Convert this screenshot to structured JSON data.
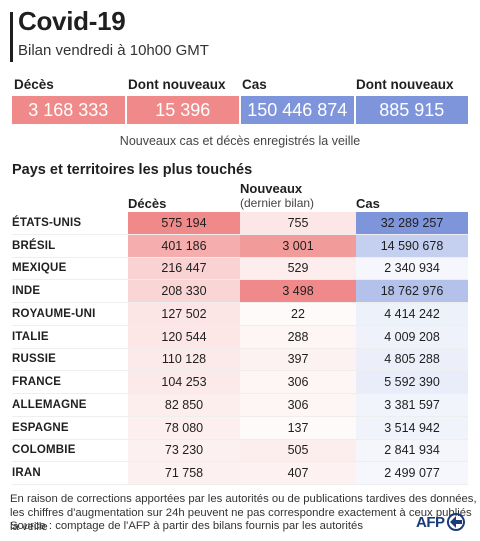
{
  "header": {
    "title": "Covid-19",
    "subtitle": "Bilan vendredi à 10h00 GMT"
  },
  "summary": {
    "items": [
      {
        "label": "Décès",
        "value": "3 168 333",
        "color": "#f08a8a"
      },
      {
        "label": "Dont nouveaux",
        "value": "15 396",
        "color": "#f08a8a"
      },
      {
        "label": "Cas",
        "value": "150 446 874",
        "color": "#7e95db"
      },
      {
        "label": "Dont nouveaux",
        "value": "885 915",
        "color": "#7e95db"
      }
    ],
    "note": "Nouveaux cas et décès enregistrés la veille"
  },
  "table": {
    "title": "Pays et territoires les plus touchés",
    "columns": {
      "deaths": "Décès",
      "new": "Nouveaux",
      "new_sub": "(dernier bilan)",
      "cases": "Cas"
    },
    "rows": [
      {
        "country": "ÉTATS-UNIS",
        "deaths": "575 194",
        "new": "755",
        "cases": "32 289 257"
      },
      {
        "country": "BRÉSIL",
        "deaths": "401 186",
        "new": "3 001",
        "cases": "14 590 678"
      },
      {
        "country": "MEXIQUE",
        "deaths": "216 447",
        "new": "529",
        "cases": "2 340 934"
      },
      {
        "country": "INDE",
        "deaths": "208 330",
        "new": "3 498",
        "cases": "18 762 976"
      },
      {
        "country": "ROYAUME-UNI",
        "deaths": "127 502",
        "new": "22",
        "cases": "4 414 242"
      },
      {
        "country": "ITALIE",
        "deaths": "120 544",
        "new": "288",
        "cases": "4 009 208"
      },
      {
        "country": "RUSSIE",
        "deaths": "110 128",
        "new": "397",
        "cases": "4 805 288"
      },
      {
        "country": "FRANCE",
        "deaths": "104 253",
        "new": "306",
        "cases": "5 592 390"
      },
      {
        "country": "ALLEMAGNE",
        "deaths": "82 850",
        "new": "306",
        "cases": "3 381 597"
      },
      {
        "country": "ESPAGNE",
        "deaths": "78 080",
        "new": "137",
        "cases": "3 514 942"
      },
      {
        "country": "COLOMBIE",
        "deaths": "73 230",
        "new": "505",
        "cases": "2 841 934"
      },
      {
        "country": "IRAN",
        "deaths": "71 758",
        "new": "407",
        "cases": "2 499 077"
      }
    ],
    "colors": {
      "deaths_max": "#f08a8a",
      "new_max": "#f08a8a",
      "cases_max": "#7e95db"
    }
  },
  "footnote": {
    "line1": "En raison de corrections apportées par les autorités ou de publications tardives des données,",
    "line2": "les chiffres d'augmentation sur 24h peuvent ne pas correspondre exactement à ceux publiés la veille",
    "source": "Source : comptage de l'AFP à partir des bilans fournis par les autorités"
  },
  "logo": {
    "text": "AFP",
    "icon": "afp-logo-icon"
  }
}
